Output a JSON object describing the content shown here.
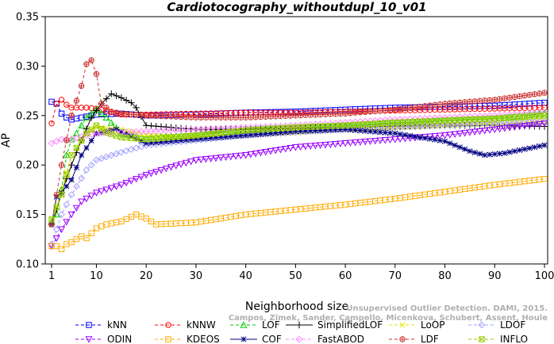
{
  "chart_data": {
    "type": "line",
    "title": "Cardiotocography_withoutdupl_10_v01",
    "xlabel": "Neighborhood size",
    "ylabel": "AP",
    "xlim": [
      1,
      100
    ],
    "ylim": [
      0.1,
      0.35
    ],
    "xticks": [
      1,
      10,
      20,
      30,
      40,
      50,
      60,
      70,
      80,
      90,
      100
    ],
    "yticks": [
      "0.10",
      "0.15",
      "0.20",
      "0.25",
      "0.30",
      "0.35"
    ],
    "grid": false,
    "legend_position": "bottom",
    "watermark": [
      "Unsupervised Outlier Detection. DAMI, 2015.",
      "Campos, Zimek, Sander, Campello, Micenkova, Schubert, Assent, Houle"
    ],
    "series": [
      {
        "name": "kNN",
        "color": "#0000ff",
        "marker": "square",
        "dash": "4,3",
        "points": [
          [
            1,
            0.264
          ],
          [
            2,
            0.262
          ],
          [
            3,
            0.252
          ],
          [
            4,
            0.248
          ],
          [
            5,
            0.246
          ],
          [
            6,
            0.247
          ],
          [
            8,
            0.249
          ],
          [
            10,
            0.251
          ],
          [
            15,
            0.252
          ],
          [
            20,
            0.25
          ],
          [
            30,
            0.251
          ],
          [
            40,
            0.253
          ],
          [
            50,
            0.254
          ],
          [
            60,
            0.256
          ],
          [
            70,
            0.258
          ],
          [
            80,
            0.259
          ],
          [
            90,
            0.26
          ],
          [
            100,
            0.263
          ]
        ]
      },
      {
        "name": "kNNW",
        "color": "#ff0000",
        "marker": "circle",
        "dash": "4,3",
        "points": [
          [
            1,
            0.242
          ],
          [
            2,
            0.262
          ],
          [
            3,
            0.266
          ],
          [
            4,
            0.261
          ],
          [
            5,
            0.258
          ],
          [
            6,
            0.258
          ],
          [
            8,
            0.258
          ],
          [
            10,
            0.257
          ],
          [
            15,
            0.251
          ],
          [
            20,
            0.251
          ],
          [
            30,
            0.252
          ],
          [
            40,
            0.253
          ],
          [
            50,
            0.253
          ],
          [
            60,
            0.254
          ],
          [
            70,
            0.255
          ],
          [
            80,
            0.256
          ],
          [
            90,
            0.257
          ],
          [
            100,
            0.258
          ]
        ]
      },
      {
        "name": "LOF",
        "color": "#00cc00",
        "marker": "triangle",
        "dash": "4,3",
        "points": [
          [
            1,
            0.143
          ],
          [
            2,
            0.15
          ],
          [
            3,
            0.175
          ],
          [
            4,
            0.21
          ],
          [
            5,
            0.226
          ],
          [
            6,
            0.232
          ],
          [
            8,
            0.248
          ],
          [
            10,
            0.256
          ],
          [
            12,
            0.248
          ],
          [
            15,
            0.232
          ],
          [
            20,
            0.228
          ],
          [
            30,
            0.23
          ],
          [
            40,
            0.236
          ],
          [
            50,
            0.238
          ],
          [
            60,
            0.24
          ],
          [
            70,
            0.242
          ],
          [
            80,
            0.245
          ],
          [
            90,
            0.247
          ],
          [
            100,
            0.252
          ]
        ]
      },
      {
        "name": "SimplifiedLOF",
        "color": "#000000",
        "marker": "plus",
        "dash": "",
        "points": [
          [
            1,
            0.14
          ],
          [
            2,
            0.155
          ],
          [
            3,
            0.172
          ],
          [
            5,
            0.2
          ],
          [
            7,
            0.225
          ],
          [
            9,
            0.248
          ],
          [
            11,
            0.262
          ],
          [
            13,
            0.272
          ],
          [
            15,
            0.268
          ],
          [
            17,
            0.263
          ],
          [
            18,
            0.258
          ],
          [
            20,
            0.24
          ],
          [
            30,
            0.236
          ],
          [
            40,
            0.236
          ],
          [
            50,
            0.237
          ],
          [
            60,
            0.238
          ],
          [
            70,
            0.239
          ],
          [
            80,
            0.24
          ],
          [
            90,
            0.24
          ],
          [
            100,
            0.239
          ]
        ]
      },
      {
        "name": "LoOP",
        "color": "#e6e600",
        "marker": "x",
        "dash": "4,3",
        "points": [
          [
            1,
            0.14
          ],
          [
            3,
            0.175
          ],
          [
            5,
            0.21
          ],
          [
            8,
            0.232
          ],
          [
            10,
            0.238
          ],
          [
            15,
            0.236
          ],
          [
            20,
            0.23
          ],
          [
            30,
            0.228
          ],
          [
            40,
            0.23
          ],
          [
            50,
            0.233
          ],
          [
            60,
            0.236
          ],
          [
            70,
            0.238
          ],
          [
            80,
            0.24
          ],
          [
            90,
            0.242
          ],
          [
            100,
            0.244
          ]
        ]
      },
      {
        "name": "LDOF",
        "color": "#a0a0ff",
        "marker": "diamond",
        "dash": "4,3",
        "points": [
          [
            1,
            0.12
          ],
          [
            3,
            0.15
          ],
          [
            5,
            0.17
          ],
          [
            8,
            0.195
          ],
          [
            10,
            0.205
          ],
          [
            15,
            0.213
          ],
          [
            20,
            0.22
          ],
          [
            30,
            0.225
          ],
          [
            40,
            0.23
          ],
          [
            50,
            0.233
          ],
          [
            60,
            0.236
          ],
          [
            70,
            0.238
          ],
          [
            80,
            0.24
          ],
          [
            90,
            0.242
          ],
          [
            100,
            0.244
          ]
        ]
      },
      {
        "name": "ODIN",
        "color": "#9900ff",
        "marker": "invtriangle",
        "dash": "4,3",
        "points": [
          [
            1,
            0.118
          ],
          [
            2,
            0.126
          ],
          [
            3,
            0.135
          ],
          [
            5,
            0.15
          ],
          [
            7,
            0.163
          ],
          [
            10,
            0.172
          ],
          [
            15,
            0.18
          ],
          [
            20,
            0.19
          ],
          [
            25,
            0.198
          ],
          [
            30,
            0.205
          ],
          [
            40,
            0.21
          ],
          [
            50,
            0.218
          ],
          [
            60,
            0.222
          ],
          [
            70,
            0.226
          ],
          [
            80,
            0.23
          ],
          [
            90,
            0.236
          ],
          [
            100,
            0.242
          ]
        ]
      },
      {
        "name": "KDEOS",
        "color": "#ffaa00",
        "marker": "square",
        "dash": "4,3",
        "points": [
          [
            1,
            0.118
          ],
          [
            2,
            0.118
          ],
          [
            3,
            0.115
          ],
          [
            4,
            0.12
          ],
          [
            5,
            0.122
          ],
          [
            7,
            0.128
          ],
          [
            8,
            0.126
          ],
          [
            10,
            0.136
          ],
          [
            12,
            0.14
          ],
          [
            15,
            0.143
          ],
          [
            18,
            0.15
          ],
          [
            20,
            0.146
          ],
          [
            22,
            0.14
          ],
          [
            30,
            0.142
          ],
          [
            40,
            0.15
          ],
          [
            50,
            0.155
          ],
          [
            60,
            0.16
          ],
          [
            70,
            0.166
          ],
          [
            80,
            0.173
          ],
          [
            90,
            0.18
          ],
          [
            100,
            0.186
          ]
        ]
      },
      {
        "name": "COF",
        "color": "#000080",
        "marker": "star",
        "dash": "",
        "points": [
          [
            1,
            0.14
          ],
          [
            2,
            0.168
          ],
          [
            3,
            0.172
          ],
          [
            5,
            0.185
          ],
          [
            7,
            0.21
          ],
          [
            10,
            0.232
          ],
          [
            14,
            0.236
          ],
          [
            20,
            0.222
          ],
          [
            30,
            0.226
          ],
          [
            40,
            0.23
          ],
          [
            50,
            0.234
          ],
          [
            60,
            0.236
          ],
          [
            70,
            0.232
          ],
          [
            80,
            0.224
          ],
          [
            85,
            0.214
          ],
          [
            88,
            0.21
          ],
          [
            92,
            0.212
          ],
          [
            96,
            0.216
          ],
          [
            100,
            0.22
          ]
        ]
      },
      {
        "name": "FastABOD",
        "color": "#ff88ff",
        "marker": "diamond",
        "dash": "4,3",
        "points": [
          [
            1,
            0.222
          ],
          [
            3,
            0.226
          ],
          [
            5,
            0.226
          ],
          [
            8,
            0.23
          ],
          [
            10,
            0.232
          ],
          [
            20,
            0.234
          ],
          [
            30,
            0.236
          ],
          [
            40,
            0.238
          ],
          [
            50,
            0.24
          ],
          [
            60,
            0.243
          ],
          [
            70,
            0.246
          ],
          [
            80,
            0.248
          ],
          [
            90,
            0.25
          ],
          [
            100,
            0.253
          ]
        ]
      },
      {
        "name": "LDF",
        "color": "#cc3333",
        "marker": "circleplus",
        "dash": "4,3",
        "points": [
          [
            1,
            0.14
          ],
          [
            3,
            0.2
          ],
          [
            5,
            0.25
          ],
          [
            7,
            0.28
          ],
          [
            8,
            0.302
          ],
          [
            9,
            0.306
          ],
          [
            10,
            0.292
          ],
          [
            11,
            0.262
          ],
          [
            13,
            0.254
          ],
          [
            15,
            0.252
          ],
          [
            20,
            0.25
          ],
          [
            30,
            0.248
          ],
          [
            40,
            0.248
          ],
          [
            50,
            0.25
          ],
          [
            60,
            0.252
          ],
          [
            70,
            0.256
          ],
          [
            80,
            0.262
          ],
          [
            90,
            0.266
          ],
          [
            100,
            0.273
          ]
        ]
      },
      {
        "name": "INFLO",
        "color": "#99cc00",
        "marker": "boxx",
        "dash": "4,3",
        "points": [
          [
            1,
            0.145
          ],
          [
            3,
            0.17
          ],
          [
            5,
            0.21
          ],
          [
            8,
            0.232
          ],
          [
            10,
            0.24
          ],
          [
            12,
            0.233
          ],
          [
            15,
            0.228
          ],
          [
            20,
            0.226
          ],
          [
            30,
            0.23
          ],
          [
            40,
            0.235
          ],
          [
            50,
            0.238
          ],
          [
            60,
            0.24
          ],
          [
            70,
            0.243
          ],
          [
            80,
            0.245
          ],
          [
            90,
            0.247
          ],
          [
            100,
            0.25
          ]
        ]
      }
    ]
  }
}
